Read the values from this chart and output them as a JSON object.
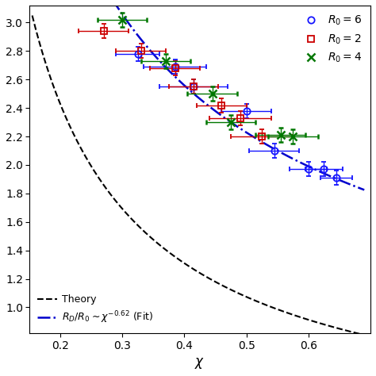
{
  "xlabel": "$\\chi$",
  "xlim": [
    0.15,
    0.7
  ],
  "ylim": [
    0.82,
    3.12
  ],
  "yticks": [
    1.0,
    1.2,
    1.4,
    1.6,
    1.8,
    2.0,
    2.2,
    2.4,
    2.6,
    2.8,
    3.0
  ],
  "xticks": [
    0.2,
    0.3,
    0.4,
    0.5,
    0.6
  ],
  "blue_circles": {
    "x": [
      0.325,
      0.385,
      0.415,
      0.5,
      0.545,
      0.6,
      0.625,
      0.645
    ],
    "y": [
      2.78,
      2.69,
      2.55,
      2.38,
      2.1,
      1.97,
      1.97,
      1.91
    ],
    "xerr": [
      0.035,
      0.05,
      0.055,
      0.04,
      0.04,
      0.03,
      0.03,
      0.025
    ],
    "yerr": [
      0.05,
      0.05,
      0.05,
      0.05,
      0.05,
      0.05,
      0.05,
      0.05
    ]
  },
  "red_squares": {
    "x": [
      0.27,
      0.33,
      0.385,
      0.415,
      0.46,
      0.49,
      0.525
    ],
    "y": [
      2.94,
      2.8,
      2.68,
      2.55,
      2.42,
      2.33,
      2.2
    ],
    "xerr": [
      0.04,
      0.04,
      0.04,
      0.04,
      0.04,
      0.05,
      0.05
    ],
    "yerr": [
      0.05,
      0.05,
      0.05,
      0.05,
      0.05,
      0.05,
      0.05
    ]
  },
  "green_x": {
    "x": [
      0.3,
      0.37,
      0.445,
      0.475,
      0.555,
      0.575
    ],
    "y": [
      3.02,
      2.73,
      2.5,
      2.3,
      2.21,
      2.2
    ],
    "xerr": [
      0.04,
      0.04,
      0.04,
      0.04,
      0.04,
      0.04
    ],
    "yerr": [
      0.05,
      0.05,
      0.05,
      0.05,
      0.05,
      0.05
    ]
  },
  "theory_color": "#000000",
  "fit_color": "#0000cc",
  "blue_color": "#1515ff",
  "red_color": "#cc0000",
  "green_color": "#007700",
  "legend_labels": {
    "blue": "$R_0 = 6$",
    "red": "$R_0 = 2$",
    "green": "$R_0 = 4$",
    "theory": "Theory",
    "fit": "$R_D/R_0 \\sim \\chi^{-0.62}$ (Fit)"
  }
}
